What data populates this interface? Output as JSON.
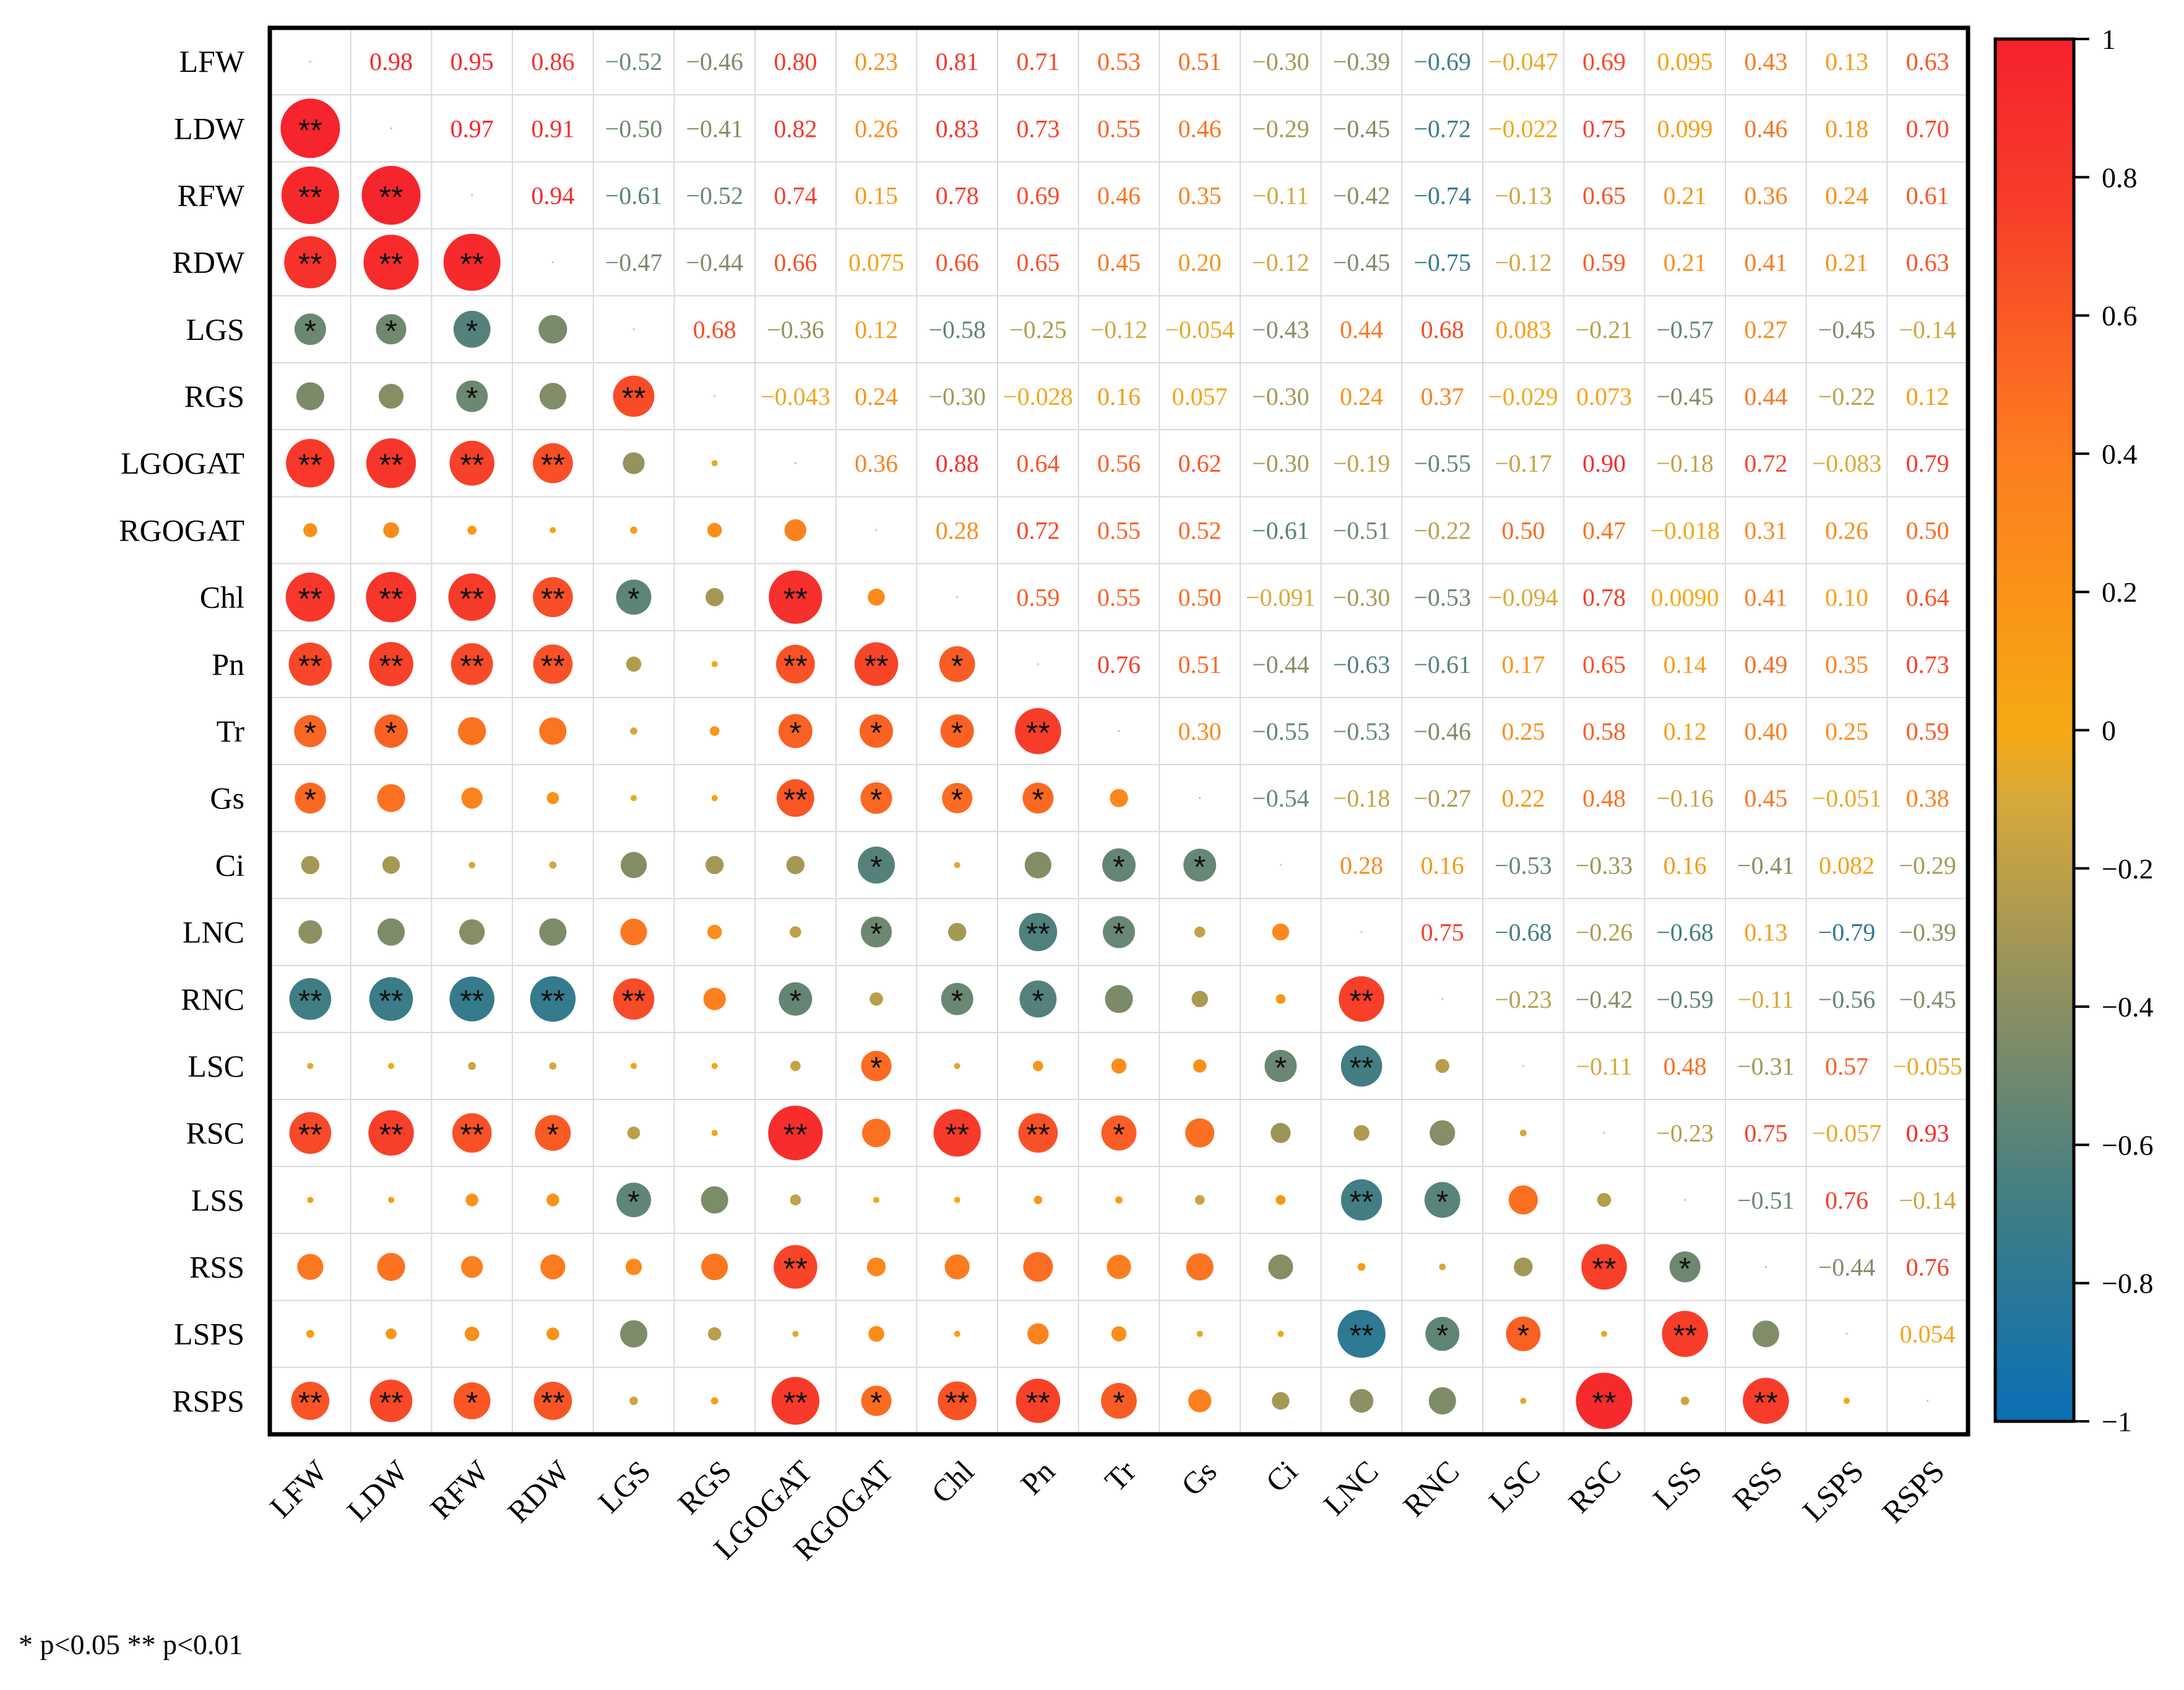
{
  "chart_data": {
    "type": "heatmap",
    "title": "",
    "variables": [
      "LFW",
      "LDW",
      "RFW",
      "RDW",
      "LGS",
      "RGS",
      "LGOGAT",
      "RGOGAT",
      "Chl",
      "Pn",
      "Tr",
      "Gs",
      "Ci",
      "LNC",
      "RNC",
      "LSC",
      "RSC",
      "LSS",
      "RSS",
      "LSPS",
      "RSPS"
    ],
    "upper_labels": [
      [
        "",
        "0.98",
        "0.95",
        "0.86",
        "−0.52",
        "−0.46",
        "0.80",
        "0.23",
        "0.81",
        "0.71",
        "0.53",
        "0.51",
        "−0.30",
        "−0.39",
        "−0.69",
        "−0.047",
        "0.69",
        "0.095",
        "0.43",
        "0.13",
        "0.63"
      ],
      [
        "",
        "",
        "0.97",
        "0.91",
        "−0.50",
        "−0.41",
        "0.82",
        "0.26",
        "0.83",
        "0.73",
        "0.55",
        "0.46",
        "−0.29",
        "−0.45",
        "−0.72",
        "−0.022",
        "0.75",
        "0.099",
        "0.46",
        "0.18",
        "0.70"
      ],
      [
        "",
        "",
        "",
        "0.94",
        "−0.61",
        "−0.52",
        "0.74",
        "0.15",
        "0.78",
        "0.69",
        "0.46",
        "0.35",
        "−0.11",
        "−0.42",
        "−0.74",
        "−0.13",
        "0.65",
        "0.21",
        "0.36",
        "0.24",
        "0.61"
      ],
      [
        "",
        "",
        "",
        "",
        "−0.47",
        "−0.44",
        "0.66",
        "0.075",
        "0.66",
        "0.65",
        "0.45",
        "0.20",
        "−0.12",
        "−0.45",
        "−0.75",
        "−0.12",
        "0.59",
        "0.21",
        "0.41",
        "0.21",
        "0.63"
      ],
      [
        "",
        "",
        "",
        "",
        "",
        "0.68",
        "−0.36",
        "0.12",
        "−0.58",
        "−0.25",
        "−0.12",
        "−0.054",
        "−0.43",
        "0.44",
        "0.68",
        "0.083",
        "−0.21",
        "−0.57",
        "0.27",
        "−0.45",
        "−0.14"
      ],
      [
        "",
        "",
        "",
        "",
        "",
        "",
        "−0.043",
        "0.24",
        "−0.30",
        "−0.028",
        "0.16",
        "0.057",
        "−0.30",
        "0.24",
        "0.37",
        "−0.029",
        "0.073",
        "−0.45",
        "0.44",
        "−0.22",
        "0.12"
      ],
      [
        "",
        "",
        "",
        "",
        "",
        "",
        "",
        "0.36",
        "0.88",
        "0.64",
        "0.56",
        "0.62",
        "−0.30",
        "−0.19",
        "−0.55",
        "−0.17",
        "0.90",
        "−0.18",
        "0.72",
        "−0.083",
        "0.79"
      ],
      [
        "",
        "",
        "",
        "",
        "",
        "",
        "",
        "",
        "0.28",
        "0.72",
        "0.55",
        "0.52",
        "−0.61",
        "−0.51",
        "−0.22",
        "0.50",
        "0.47",
        "−0.018",
        "0.31",
        "0.26",
        "0.50"
      ],
      [
        "",
        "",
        "",
        "",
        "",
        "",
        "",
        "",
        "",
        "0.59",
        "0.55",
        "0.50",
        "−0.091",
        "−0.30",
        "−0.53",
        "−0.094",
        "0.78",
        "0.0090",
        "0.41",
        "0.10",
        "0.64"
      ],
      [
        "",
        "",
        "",
        "",
        "",
        "",
        "",
        "",
        "",
        "",
        "0.76",
        "0.51",
        "−0.44",
        "−0.63",
        "−0.61",
        "0.17",
        "0.65",
        "0.14",
        "0.49",
        "0.35",
        "0.73"
      ],
      [
        "",
        "",
        "",
        "",
        "",
        "",
        "",
        "",
        "",
        "",
        "",
        "0.30",
        "−0.55",
        "−0.53",
        "−0.46",
        "0.25",
        "0.58",
        "0.12",
        "0.40",
        "0.25",
        "0.59"
      ],
      [
        "",
        "",
        "",
        "",
        "",
        "",
        "",
        "",
        "",
        "",
        "",
        "",
        "−0.54",
        "−0.18",
        "−0.27",
        "0.22",
        "0.48",
        "−0.16",
        "0.45",
        "−0.051",
        "0.38"
      ],
      [
        "",
        "",
        "",
        "",
        "",
        "",
        "",
        "",
        "",
        "",
        "",
        "",
        "",
        "0.28",
        "0.16",
        "−0.53",
        "−0.33",
        "0.16",
        "−0.41",
        "0.082",
        "−0.29"
      ],
      [
        "",
        "",
        "",
        "",
        "",
        "",
        "",
        "",
        "",
        "",
        "",
        "",
        "",
        "",
        "0.75",
        "−0.68",
        "−0.26",
        "−0.68",
        "0.13",
        "−0.79",
        "−0.39"
      ],
      [
        "",
        "",
        "",
        "",
        "",
        "",
        "",
        "",
        "",
        "",
        "",
        "",
        "",
        "",
        "",
        "−0.23",
        "−0.42",
        "−0.59",
        "−0.11",
        "−0.56",
        "−0.45"
      ],
      [
        "",
        "",
        "",
        "",
        "",
        "",
        "",
        "",
        "",
        "",
        "",
        "",
        "",
        "",
        "",
        "",
        "−0.11",
        "0.48",
        "−0.31",
        "0.57",
        "−0.055"
      ],
      [
        "",
        "",
        "",
        "",
        "",
        "",
        "",
        "",
        "",
        "",
        "",
        "",
        "",
        "",
        "",
        "",
        "",
        "−0.23",
        "0.75",
        "−0.057",
        "0.93"
      ],
      [
        "",
        "",
        "",
        "",
        "",
        "",
        "",
        "",
        "",
        "",
        "",
        "",
        "",
        "",
        "",
        "",
        "",
        "",
        "−0.51",
        "0.76",
        "−0.14"
      ],
      [
        "",
        "",
        "",
        "",
        "",
        "",
        "",
        "",
        "",
        "",
        "",
        "",
        "",
        "",
        "",
        "",
        "",
        "",
        "",
        "−0.44",
        "0.76"
      ],
      [
        "",
        "",
        "",
        "",
        "",
        "",
        "",
        "",
        "",
        "",
        "",
        "",
        "",
        "",
        "",
        "",
        "",
        "",
        "",
        "",
        "0.054"
      ],
      [
        "",
        "",
        "",
        "",
        "",
        "",
        "",
        "",
        "",
        "",
        "",
        "",
        "",
        "",
        "",
        "",
        "",
        "",
        "",
        "",
        ""
      ]
    ],
    "significance": {
      "LDW": [
        "**"
      ],
      "RFW": [
        "**",
        "**"
      ],
      "RDW": [
        "**",
        "**",
        "**",
        ""
      ],
      "LGS": [
        "*",
        "*",
        "*",
        ""
      ],
      "RGS": [
        "",
        "",
        "*",
        "",
        "**"
      ],
      "LGOGAT": [
        "**",
        "**",
        "**",
        "**",
        "",
        ""
      ],
      "RGOGAT": [
        "",
        "",
        "",
        "",
        "",
        "",
        ""
      ],
      "Chl": [
        "**",
        "**",
        "**",
        "**",
        "*",
        "",
        "**",
        ""
      ],
      "Pn": [
        "**",
        "**",
        "**",
        "**",
        "",
        "",
        "**",
        "**",
        "*"
      ],
      "Tr": [
        "*",
        "*",
        "",
        "",
        "",
        "",
        "*",
        "*",
        "*",
        "**"
      ],
      "Gs": [
        "*",
        "",
        "",
        "",
        "",
        "",
        "**",
        "*",
        "*",
        "*",
        ""
      ],
      "Ci": [
        "",
        "",
        "",
        "",
        "",
        "",
        "",
        "*",
        "",
        "",
        "*",
        "*"
      ],
      "LNC": [
        "",
        "",
        "",
        "",
        "",
        "",
        "",
        "*",
        "",
        "**",
        "*",
        "",
        ""
      ],
      "RNC": [
        "**",
        "**",
        "**",
        "**",
        "**",
        "",
        "*",
        "",
        "*",
        "*",
        "",
        "",
        "",
        "**"
      ],
      "LSC": [
        "",
        "",
        "",
        "",
        "",
        "",
        "",
        "*",
        "",
        "",
        "",
        "",
        "*",
        "**",
        ""
      ],
      "RSC": [
        "**",
        "**",
        "**",
        "*",
        "",
        "",
        "**",
        "",
        "**",
        "**",
        "*",
        "",
        "",
        "",
        "",
        ""
      ],
      "LSS": [
        "",
        "",
        "",
        "",
        "*",
        "",
        "",
        "",
        "",
        "",
        "",
        "",
        "",
        "**",
        "*",
        "",
        ""
      ],
      "RSS": [
        "",
        "",
        "",
        "",
        "",
        "",
        "**",
        "",
        "",
        "",
        "",
        "",
        "",
        "",
        "",
        "",
        "**",
        "*"
      ],
      "LSPS": [
        "",
        "",
        "",
        "",
        "",
        "",
        "",
        "",
        "",
        "",
        "",
        "",
        "",
        "**",
        "*",
        "*",
        "",
        "**",
        ""
      ],
      "RSPS": [
        "**",
        "**",
        "*",
        "**",
        "",
        "",
        "**",
        "*",
        "**",
        "**",
        "*",
        "",
        "",
        "",
        "",
        "",
        "**",
        "",
        "**",
        ""
      ]
    },
    "colorbar": {
      "range": [
        -1,
        1
      ],
      "ticks": [
        1,
        0.8,
        0.6,
        0.4,
        0.2,
        0,
        -0.2,
        -0.4,
        -0.6,
        -0.8,
        -1
      ],
      "tick_labels": [
        "1",
        "0.8",
        "0.6",
        "0.4",
        "0.2",
        "0",
        "−0.2",
        "−0.4",
        "−0.6",
        "−0.8",
        "−1"
      ],
      "colors": [
        "#0a6fb4",
        "#3d7d86",
        "#8a8f62",
        "#d7a93a",
        "#f6a912",
        "#fc7d1f",
        "#f73d2a",
        "#f5222d"
      ]
    }
  },
  "footnote": "* p<0.05  ** p<0.01"
}
